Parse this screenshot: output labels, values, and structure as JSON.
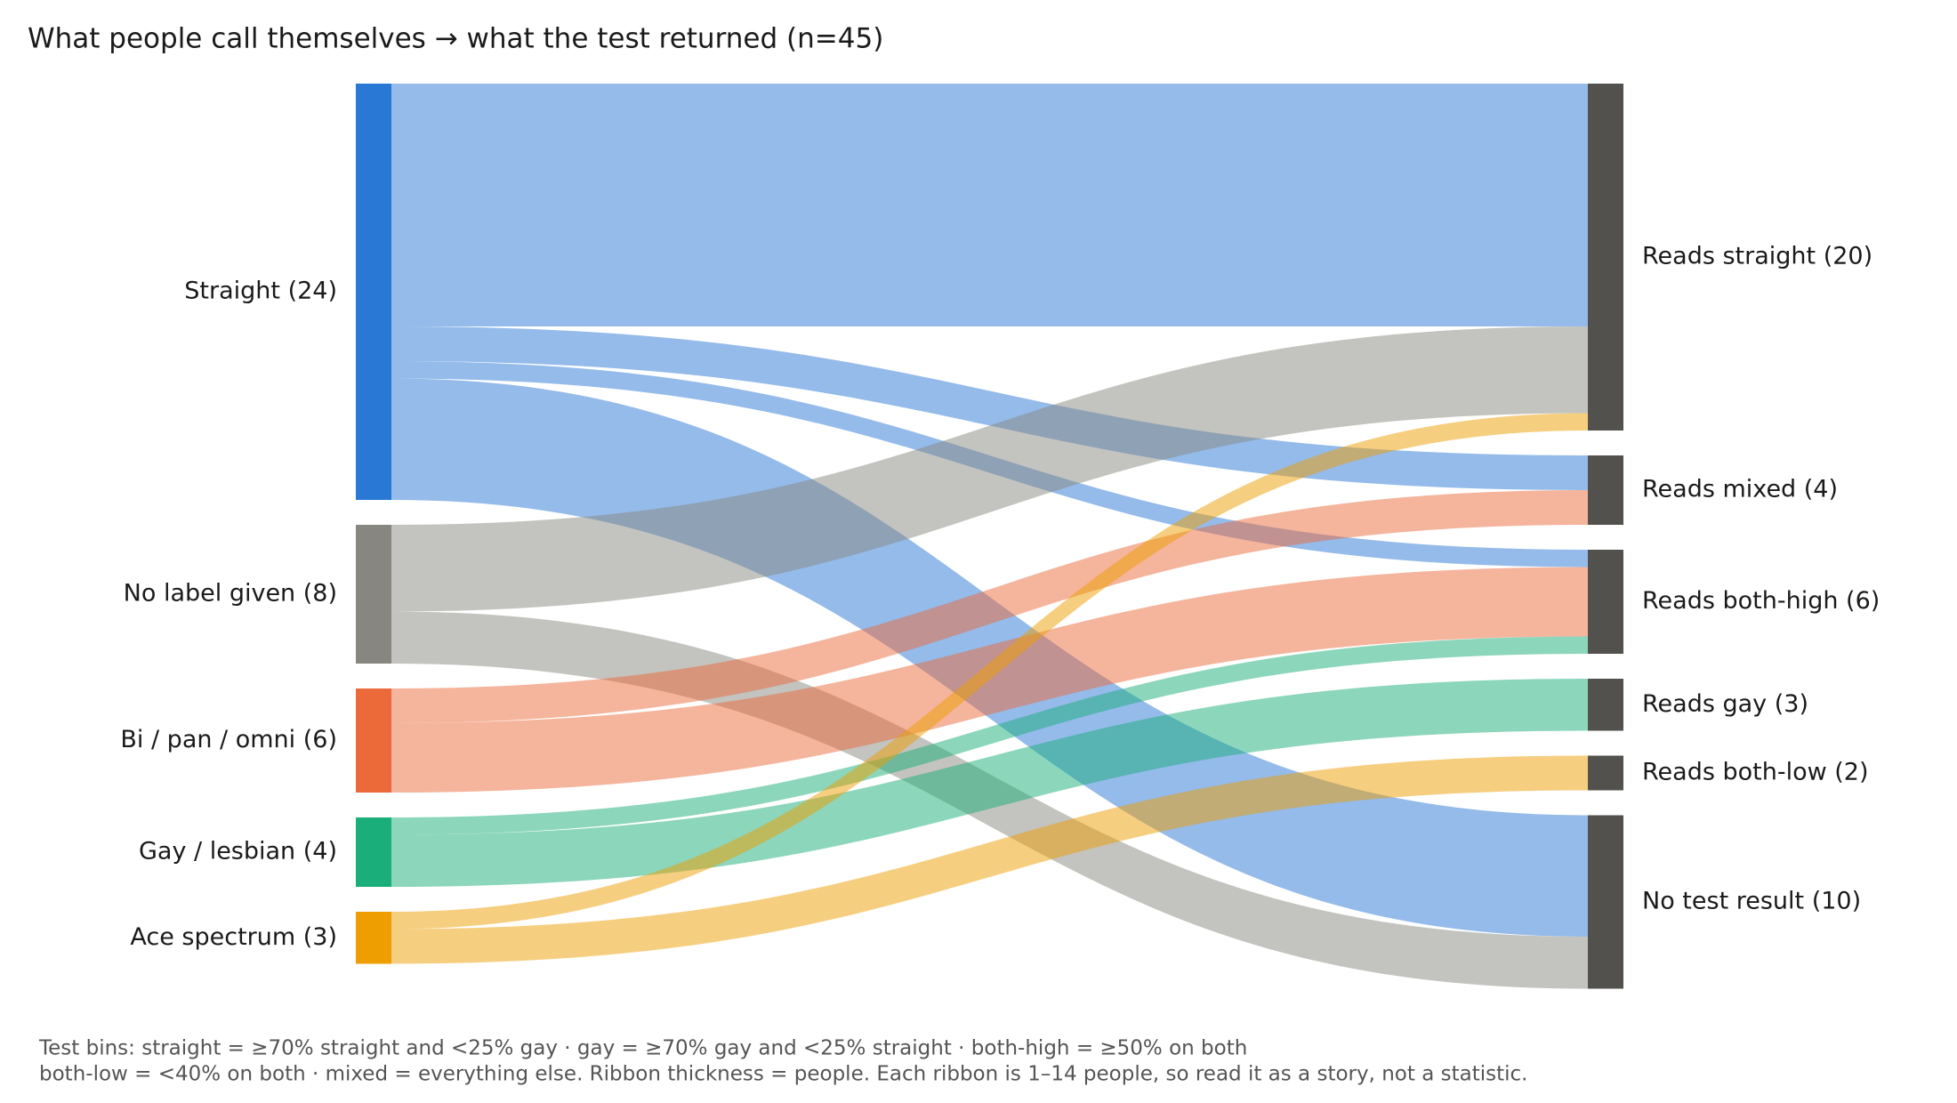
{
  "chart_data": {
    "type": "sankey",
    "title": "What people call themselves → what the test returned (n=45)",
    "left_nodes": [
      {
        "label": "Straight  (24)",
        "color": "#2a78d6"
      },
      {
        "label": "No label given  (8)",
        "color": "#878780"
      },
      {
        "label": "Bi / pan / omni  (6)",
        "color": "#ec6a3a"
      },
      {
        "label": "Gay / lesbian  (4)",
        "color": "#1aae7a"
      },
      {
        "label": "Ace spectrum  (3)",
        "color": "#ee9e00"
      }
    ],
    "right_nodes": [
      {
        "label": "Reads straight  (20)"
      },
      {
        "label": "Reads mixed  (4)"
      },
      {
        "label": "Reads both-high  (6)"
      },
      {
        "label": "Reads gay  (3)"
      },
      {
        "label": "Reads both-low  (2)"
      },
      {
        "label": "No test result  (10)"
      }
    ],
    "right_color": "#52514d",
    "flows": [
      {
        "source": 0,
        "target": 0,
        "value": 14
      },
      {
        "source": 0,
        "target": 1,
        "value": 2
      },
      {
        "source": 0,
        "target": 2,
        "value": 1
      },
      {
        "source": 0,
        "target": 5,
        "value": 7
      },
      {
        "source": 1,
        "target": 0,
        "value": 5
      },
      {
        "source": 1,
        "target": 5,
        "value": 3
      },
      {
        "source": 2,
        "target": 1,
        "value": 2
      },
      {
        "source": 2,
        "target": 2,
        "value": 4
      },
      {
        "source": 3,
        "target": 2,
        "value": 1
      },
      {
        "source": 3,
        "target": 3,
        "value": 3
      },
      {
        "source": 4,
        "target": 0,
        "value": 1
      },
      {
        "source": 4,
        "target": 4,
        "value": 2
      }
    ],
    "footnote": [
      "Test bins: straight = ≥70% straight and <25% gay · gay = ≥70% gay and <25% straight · both-high = ≥50% on both",
      "both-low = <40% on both · mixed = everything else. Ribbon thickness = people. Each ribbon is 1–14 people, so read it as a story, not a statistic."
    ]
  }
}
